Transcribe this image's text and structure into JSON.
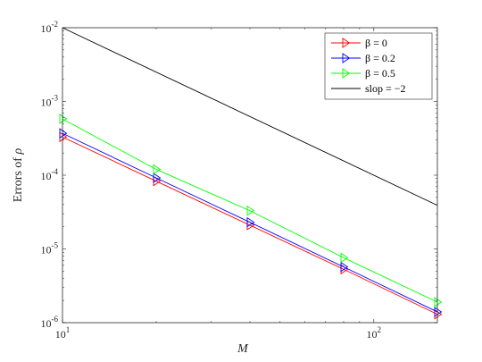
{
  "chart_data": {
    "type": "line",
    "title": "",
    "xlabel": "M",
    "ylabel_prefix": "Errors of ",
    "ylabel_symbol": "ρ",
    "xscale": "log",
    "yscale": "log",
    "xlim": [
      10,
      160
    ],
    "ylim": [
      1e-06,
      0.01
    ],
    "x_ticks": [
      10,
      100
    ],
    "x_tick_labels": [
      {
        "base": "10",
        "exp": "1"
      },
      {
        "base": "10",
        "exp": "2"
      }
    ],
    "y_ticks": [
      1e-06,
      1e-05,
      0.0001,
      0.001,
      0.01
    ],
    "y_tick_labels": [
      {
        "base": "10",
        "exp": "-6"
      },
      {
        "base": "10",
        "exp": "-5"
      },
      {
        "base": "10",
        "exp": "-4"
      },
      {
        "base": "10",
        "exp": "-3"
      },
      {
        "base": "10",
        "exp": "-2"
      }
    ],
    "grid": false,
    "legend_position": "top-right",
    "series": [
      {
        "name": "β = 0",
        "color": "#ff0000",
        "marker": "triangle-right",
        "x": [
          10,
          20,
          40,
          80,
          160
        ],
        "y": [
          0.00033,
          8.3e-05,
          2.1e-05,
          5.3e-06,
          1.3e-06
        ]
      },
      {
        "name": "β = 0.2",
        "color": "#0000ff",
        "marker": "triangle-right",
        "x": [
          10,
          20,
          40,
          80,
          160
        ],
        "y": [
          0.00037,
          9.2e-05,
          2.3e-05,
          5.7e-06,
          1.4e-06
        ]
      },
      {
        "name": "β = 0.5",
        "color": "#00ff00",
        "marker": "triangle-right",
        "x": [
          10,
          20,
          40,
          80,
          160
        ],
        "y": [
          0.00058,
          0.00012,
          3.3e-05,
          7.6e-06,
          1.9e-06
        ]
      },
      {
        "name": "slop = −2",
        "color": "#000000",
        "marker": "none",
        "x": [
          10,
          160
        ],
        "y": [
          0.01,
          3.9e-05
        ]
      }
    ]
  }
}
